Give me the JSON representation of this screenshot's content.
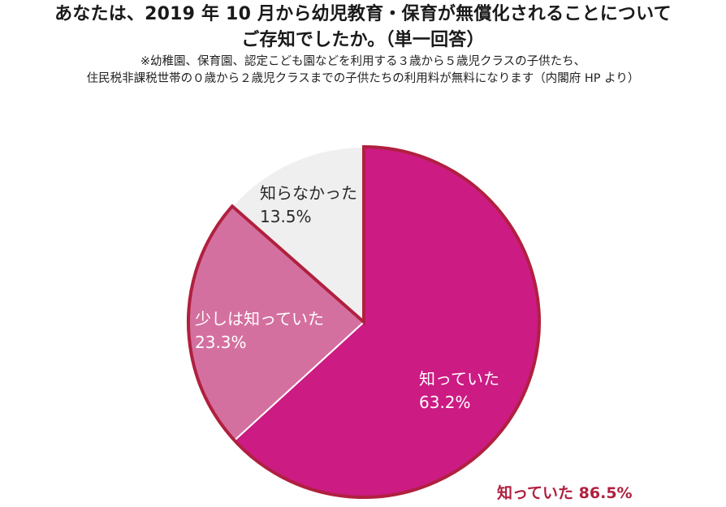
{
  "title": {
    "line1": "あなたは、2019 年 10 月から幼児教育・保育が無償化されることについて",
    "line2": "ご存知でしたか。（単一回答）"
  },
  "note": {
    "line1": "※幼稚園、保育園、認定こども園などを利用する３歳から５歳児クラスの子供たち、",
    "line2": "住民税非課税世帯の０歳から２歳児クラスまでの子供たちの利用料が無料になります（内閣府 HP より）"
  },
  "colors": {
    "knew": "#cc1b83",
    "somewhat": "#d4709f",
    "didnt": "#efefef",
    "outline": "#b0203f",
    "separator": "#ffffff"
  },
  "chart_data": {
    "type": "pie",
    "start": "12 o'clock",
    "direction": "clockwise",
    "slices": [
      {
        "label": "知っていた",
        "value": 63.2,
        "value_label": "63.2%",
        "color": "#cc1b83"
      },
      {
        "label": "少しは知っていた",
        "value": 23.3,
        "value_label": "23.3%",
        "color": "#d4709f"
      },
      {
        "label": "知らなかった",
        "value": 13.5,
        "value_label": "13.5%",
        "color": "#efefef"
      }
    ],
    "grouped_outline": [
      "知っていた",
      "少しは知っていた"
    ],
    "summary_label": "知っていた 86.5%"
  }
}
